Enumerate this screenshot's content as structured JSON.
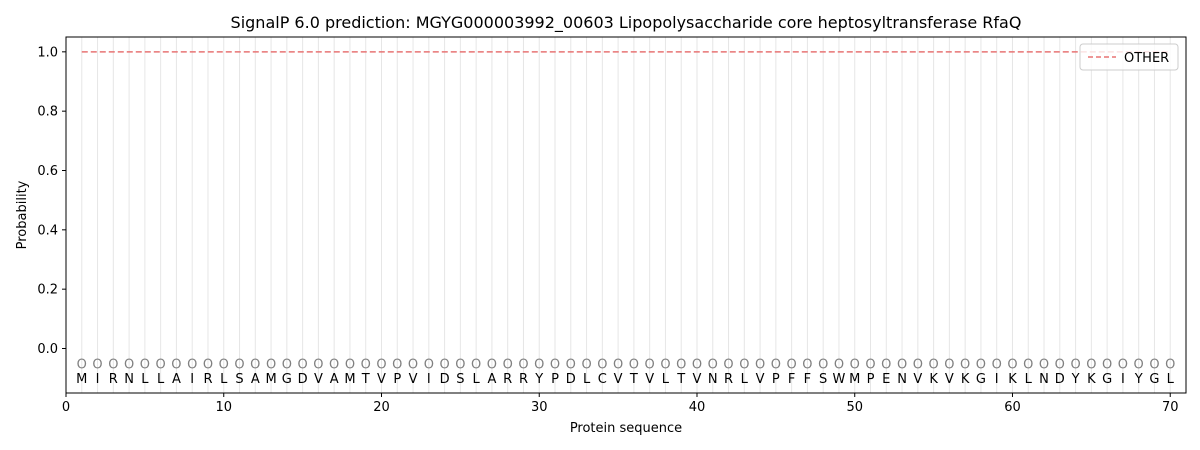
{
  "chart_data": {
    "type": "line",
    "title": "SignalP 6.0 prediction: MGYG000003992_00603 Lipopolysaccharide core heptosyltransferase RfaQ",
    "xlabel": "Protein sequence",
    "ylabel": "Probability",
    "xlim": [
      0,
      71
    ],
    "ylim": [
      -0.15,
      1.05
    ],
    "x_ticks": [
      0,
      10,
      20,
      30,
      40,
      50,
      60,
      70
    ],
    "y_ticks": [
      0.0,
      0.2,
      0.4,
      0.6,
      0.8,
      1.0
    ],
    "x_tick_labels": [
      "0",
      "10",
      "20",
      "30",
      "40",
      "50",
      "60",
      "70"
    ],
    "y_tick_labels": [
      "0.0",
      "0.2",
      "0.4",
      "0.6",
      "0.8",
      "1.0"
    ],
    "sequence": [
      "M",
      "I",
      "R",
      "N",
      "L",
      "L",
      "A",
      "I",
      "R",
      "L",
      "S",
      "A",
      "M",
      "G",
      "D",
      "V",
      "A",
      "M",
      "T",
      "V",
      "P",
      "V",
      "I",
      "D",
      "S",
      "L",
      "A",
      "R",
      "R",
      "Y",
      "P",
      "D",
      "L",
      "C",
      "V",
      "T",
      "V",
      "L",
      "T",
      "V",
      "N",
      "R",
      "L",
      "V",
      "P",
      "F",
      "F",
      "S",
      "W",
      "M",
      "P",
      "E",
      "N",
      "V",
      "K",
      "V",
      "K",
      "G",
      "I",
      "K",
      "L",
      "N",
      "D",
      "Y",
      "K",
      "G",
      "I",
      "Y",
      "G",
      "L"
    ],
    "region_labels": [
      "O",
      "O",
      "O",
      "O",
      "O",
      "O",
      "O",
      "O",
      "O",
      "O",
      "O",
      "O",
      "O",
      "O",
      "O",
      "O",
      "O",
      "O",
      "O",
      "O",
      "O",
      "O",
      "O",
      "O",
      "O",
      "O",
      "O",
      "O",
      "O",
      "O",
      "O",
      "O",
      "O",
      "O",
      "O",
      "O",
      "O",
      "O",
      "O",
      "O",
      "O",
      "O",
      "O",
      "O",
      "O",
      "O",
      "O",
      "O",
      "O",
      "O",
      "O",
      "O",
      "O",
      "O",
      "O",
      "O",
      "O",
      "O",
      "O",
      "O",
      "O",
      "O",
      "O",
      "O",
      "O",
      "O",
      "O",
      "O",
      "O",
      "O"
    ],
    "series": [
      {
        "name": "OTHER",
        "color": "#e87474",
        "style": "dashed",
        "x_start": 1,
        "x_end": 70,
        "value": 1.0
      }
    ],
    "grid": "vertical-per-residue",
    "legend_position": "top-right"
  }
}
